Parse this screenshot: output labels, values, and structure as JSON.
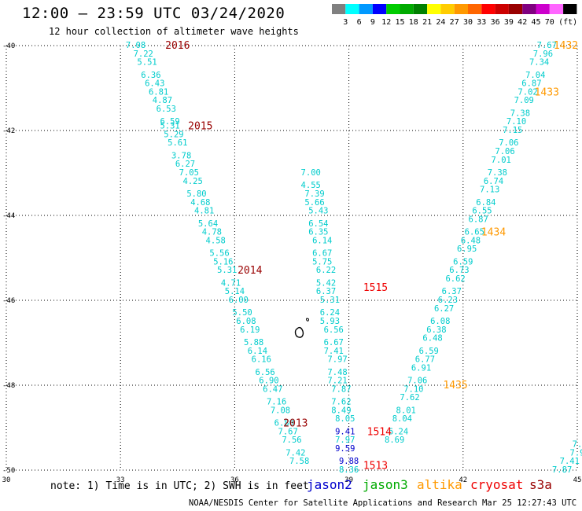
{
  "header": {
    "title": "12:00 – 23:59 UTC 03/24/2020",
    "subtitle": "12 hour collection of altimeter wave heights"
  },
  "colorbar": {
    "unit": "(ft)",
    "swatches": [
      "#808080",
      "#00ffff",
      "#0099ff",
      "#0000ff",
      "#00cc00",
      "#00aa00",
      "#008000",
      "#ffff00",
      "#ffcc00",
      "#ff9900",
      "#ff6600",
      "#ff0000",
      "#cc0000",
      "#990000",
      "#800080",
      "#cc00cc",
      "#ff66ff",
      "#000000"
    ],
    "labels": [
      "3",
      "6",
      "9",
      "12",
      "15",
      "18",
      "21",
      "24",
      "27",
      "30",
      "33",
      "36",
      "39",
      "42",
      "45",
      "70"
    ]
  },
  "chart_data": {
    "type": "scatter",
    "xlim": [
      30,
      45
    ],
    "ylim": [
      -50,
      -40
    ],
    "x_ticks": [
      "30",
      "33",
      "36",
      "39",
      "42",
      "45"
    ],
    "y_ticks": [
      "-40",
      "-42",
      "-44",
      "-46",
      "-48",
      "-50"
    ],
    "colors": {
      "cyan": "#00cccc",
      "blue": "#0000cc",
      "orange": "#ff9900",
      "darkred": "#990000",
      "red": "#ee0000"
    },
    "tracks": [
      {
        "color": "cyan",
        "points": [
          [
            33.4,
            -40.0,
            "7.08"
          ],
          [
            33.6,
            -40.2,
            "7.22"
          ],
          [
            33.7,
            -40.4,
            "5.51"
          ],
          [
            33.8,
            -40.7,
            "6.36"
          ],
          [
            33.9,
            -40.9,
            "6.43"
          ],
          [
            34.0,
            -41.1,
            "6.81"
          ],
          [
            34.1,
            -41.3,
            "4.87"
          ],
          [
            34.2,
            -41.5,
            "6.53"
          ],
          [
            34.3,
            -41.8,
            "6.59"
          ],
          [
            34.3,
            -41.9,
            "5.31"
          ],
          [
            34.4,
            -42.1,
            "5.29"
          ],
          [
            34.5,
            -42.3,
            "5.61"
          ],
          [
            34.6,
            -42.6,
            "3.78"
          ],
          [
            34.7,
            -42.8,
            "6.27"
          ],
          [
            34.8,
            -43.0,
            "7.05"
          ],
          [
            34.9,
            -43.2,
            "4.25"
          ],
          [
            35.0,
            -43.5,
            "5.80"
          ],
          [
            35.1,
            -43.7,
            "4.68"
          ],
          [
            35.2,
            -43.9,
            "4.81"
          ],
          [
            35.3,
            -44.2,
            "5.64"
          ],
          [
            35.4,
            -44.4,
            "4.78"
          ],
          [
            35.5,
            -44.6,
            "4.58"
          ],
          [
            35.6,
            -44.9,
            "5.56"
          ],
          [
            35.7,
            -45.1,
            "5.16"
          ],
          [
            35.8,
            -45.3,
            "5.31"
          ],
          [
            35.9,
            -45.6,
            "4.71"
          ],
          [
            36.0,
            -45.8,
            "5.14"
          ],
          [
            36.1,
            -46.0,
            "6.00"
          ],
          [
            36.2,
            -46.3,
            "5.50"
          ],
          [
            36.3,
            -46.5,
            "6.08"
          ],
          [
            36.4,
            -46.7,
            "6.19"
          ],
          [
            36.5,
            -47.0,
            "5.88"
          ],
          [
            36.6,
            -47.2,
            "6.14"
          ],
          [
            36.7,
            -47.4,
            "6.16"
          ],
          [
            36.8,
            -47.7,
            "6.56"
          ],
          [
            36.9,
            -47.9,
            "6.90"
          ],
          [
            37.0,
            -48.1,
            "6.47"
          ],
          [
            37.1,
            -48.4,
            "7.16"
          ],
          [
            37.2,
            -48.6,
            "7.08"
          ],
          [
            37.3,
            -48.9,
            "6.80"
          ],
          [
            37.4,
            -49.1,
            "7.67"
          ],
          [
            37.5,
            -49.3,
            "7.56"
          ],
          [
            37.6,
            -49.6,
            "7.42"
          ],
          [
            37.7,
            -49.8,
            "7.58"
          ]
        ]
      },
      {
        "color": "cyan",
        "points": [
          [
            38.0,
            -43.0,
            "7.00"
          ],
          [
            38.0,
            -43.3,
            "4.55"
          ],
          [
            38.1,
            -43.5,
            "7.39"
          ],
          [
            38.1,
            -43.7,
            "5.66"
          ],
          [
            38.2,
            -43.9,
            "5.43"
          ],
          [
            38.2,
            -44.2,
            "6.54"
          ],
          [
            38.2,
            -44.4,
            "6.35"
          ],
          [
            38.3,
            -44.6,
            "6.14"
          ],
          [
            38.3,
            -44.9,
            "6.67"
          ],
          [
            38.3,
            -45.1,
            "5.75"
          ],
          [
            38.4,
            -45.3,
            "6.22"
          ],
          [
            38.4,
            -45.6,
            "5.42"
          ],
          [
            38.4,
            -45.8,
            "6.37"
          ],
          [
            38.5,
            -46.0,
            "5.31"
          ],
          [
            38.5,
            -46.3,
            "6.24"
          ],
          [
            38.5,
            -46.5,
            "5.93"
          ],
          [
            38.6,
            -46.7,
            "6.56"
          ],
          [
            38.6,
            -47.0,
            "6.67"
          ],
          [
            38.6,
            -47.2,
            "7.41"
          ],
          [
            38.7,
            -47.4,
            "7.97"
          ],
          [
            38.7,
            -47.7,
            "7.48"
          ],
          [
            38.7,
            -47.9,
            "7.21"
          ],
          [
            38.8,
            -48.1,
            "7.87"
          ],
          [
            38.8,
            -48.4,
            "7.62"
          ],
          [
            38.8,
            -48.6,
            "8.49"
          ],
          [
            38.9,
            -48.8,
            "8.05"
          ]
        ]
      },
      {
        "color": "blue",
        "points": [
          [
            38.9,
            -49.1,
            "9.41"
          ],
          [
            39.0,
            -49.8,
            "9.88"
          ]
        ]
      },
      {
        "color": "cyan",
        "points": [
          [
            38.9,
            -49.3,
            "7.97"
          ],
          [
            39.0,
            -50.0,
            "8.36"
          ]
        ]
      },
      {
        "color": "blue",
        "points": [
          [
            38.9,
            -49.5,
            "9.59"
          ]
        ]
      },
      {
        "color": "cyan",
        "points": [
          [
            44.2,
            -40.0,
            "7.67"
          ],
          [
            44.1,
            -40.2,
            "7.96"
          ],
          [
            44.0,
            -40.4,
            "7.34"
          ],
          [
            43.9,
            -40.7,
            "7.04"
          ],
          [
            43.8,
            -40.9,
            "6.87"
          ],
          [
            43.7,
            -41.1,
            "7.02"
          ],
          [
            43.6,
            -41.3,
            "7.09"
          ],
          [
            43.5,
            -41.6,
            "7.38"
          ],
          [
            43.4,
            -41.8,
            "7.10"
          ],
          [
            43.3,
            -42.0,
            "7.15"
          ],
          [
            43.2,
            -42.3,
            "7.06"
          ],
          [
            43.1,
            -42.5,
            "7.06"
          ],
          [
            43.0,
            -42.7,
            "7.01"
          ],
          [
            42.9,
            -43.0,
            "7.38"
          ],
          [
            42.8,
            -43.2,
            "6.74"
          ],
          [
            42.7,
            -43.4,
            "7.13"
          ],
          [
            42.6,
            -43.7,
            "6.84"
          ],
          [
            42.5,
            -43.9,
            "6.55"
          ],
          [
            42.4,
            -44.1,
            "6.87"
          ],
          [
            42.3,
            -44.4,
            "6.65"
          ],
          [
            42.2,
            -44.6,
            "6.48"
          ],
          [
            42.1,
            -44.8,
            "6.95"
          ],
          [
            42.0,
            -45.1,
            "6.59"
          ],
          [
            41.9,
            -45.3,
            "6.73"
          ],
          [
            41.8,
            -45.5,
            "6.62"
          ],
          [
            41.7,
            -45.8,
            "6.37"
          ],
          [
            41.6,
            -46.0,
            "6.23"
          ],
          [
            41.5,
            -46.2,
            "6.27"
          ],
          [
            41.4,
            -46.5,
            "6.08"
          ],
          [
            41.3,
            -46.7,
            "6.38"
          ],
          [
            41.2,
            -46.9,
            "6.48"
          ],
          [
            41.1,
            -47.2,
            "6.59"
          ],
          [
            41.0,
            -47.4,
            "6.77"
          ],
          [
            40.9,
            -47.6,
            "6.91"
          ],
          [
            40.8,
            -47.9,
            "7.06"
          ],
          [
            40.7,
            -48.1,
            "7.10"
          ],
          [
            40.6,
            -48.3,
            "7.62"
          ],
          [
            40.5,
            -48.6,
            "8.01"
          ],
          [
            40.4,
            -48.8,
            "8.04"
          ],
          [
            40.3,
            -49.1,
            "6.24"
          ],
          [
            40.2,
            -49.3,
            "8.69"
          ]
        ]
      },
      {
        "color": "cyan",
        "points": [
          [
            45.0,
            -49.4,
            "7."
          ],
          [
            45.0,
            -49.6,
            "7.9"
          ],
          [
            44.8,
            -49.8,
            "7.41"
          ],
          [
            44.6,
            -50.0,
            "7.87"
          ]
        ]
      }
    ],
    "time_labels": [
      {
        "x": 34.5,
        "y": -40.0,
        "text": "2016",
        "color": "darkred"
      },
      {
        "x": 35.1,
        "y": -41.9,
        "text": "2015",
        "color": "darkred"
      },
      {
        "x": 36.4,
        "y": -45.3,
        "text": "2014",
        "color": "darkred"
      },
      {
        "x": 37.6,
        "y": -48.9,
        "text": "2013",
        "color": "darkred"
      },
      {
        "x": 39.7,
        "y": -45.7,
        "text": "1515",
        "color": "red"
      },
      {
        "x": 39.8,
        "y": -49.1,
        "text": "1514",
        "color": "red"
      },
      {
        "x": 39.7,
        "y": -49.9,
        "text": "1513",
        "color": "red"
      },
      {
        "x": 44.7,
        "y": -40.0,
        "text": "1432",
        "color": "orange"
      },
      {
        "x": 44.2,
        "y": -41.1,
        "text": "1433",
        "color": "orange"
      },
      {
        "x": 42.8,
        "y": -44.4,
        "text": "1434",
        "color": "orange"
      },
      {
        "x": 41.8,
        "y": -48.0,
        "text": "1435",
        "color": "orange"
      }
    ]
  },
  "footer": {
    "note": "note: 1) Time is in UTC; 2) SWH is in feet",
    "satellites": [
      {
        "name": "jason2",
        "color": "#0000cc"
      },
      {
        "name": "jason3",
        "color": "#00aa00"
      },
      {
        "name": "altika",
        "color": "#ff9900"
      },
      {
        "name": "cryosat",
        "color": "#ee0000"
      },
      {
        "name": "s3a",
        "color": "#990000"
      }
    ],
    "credit": "NOAA/NESDIS Center for Satellite Applications and Research   Mar 25 12:27:43 UTC 2020"
  }
}
